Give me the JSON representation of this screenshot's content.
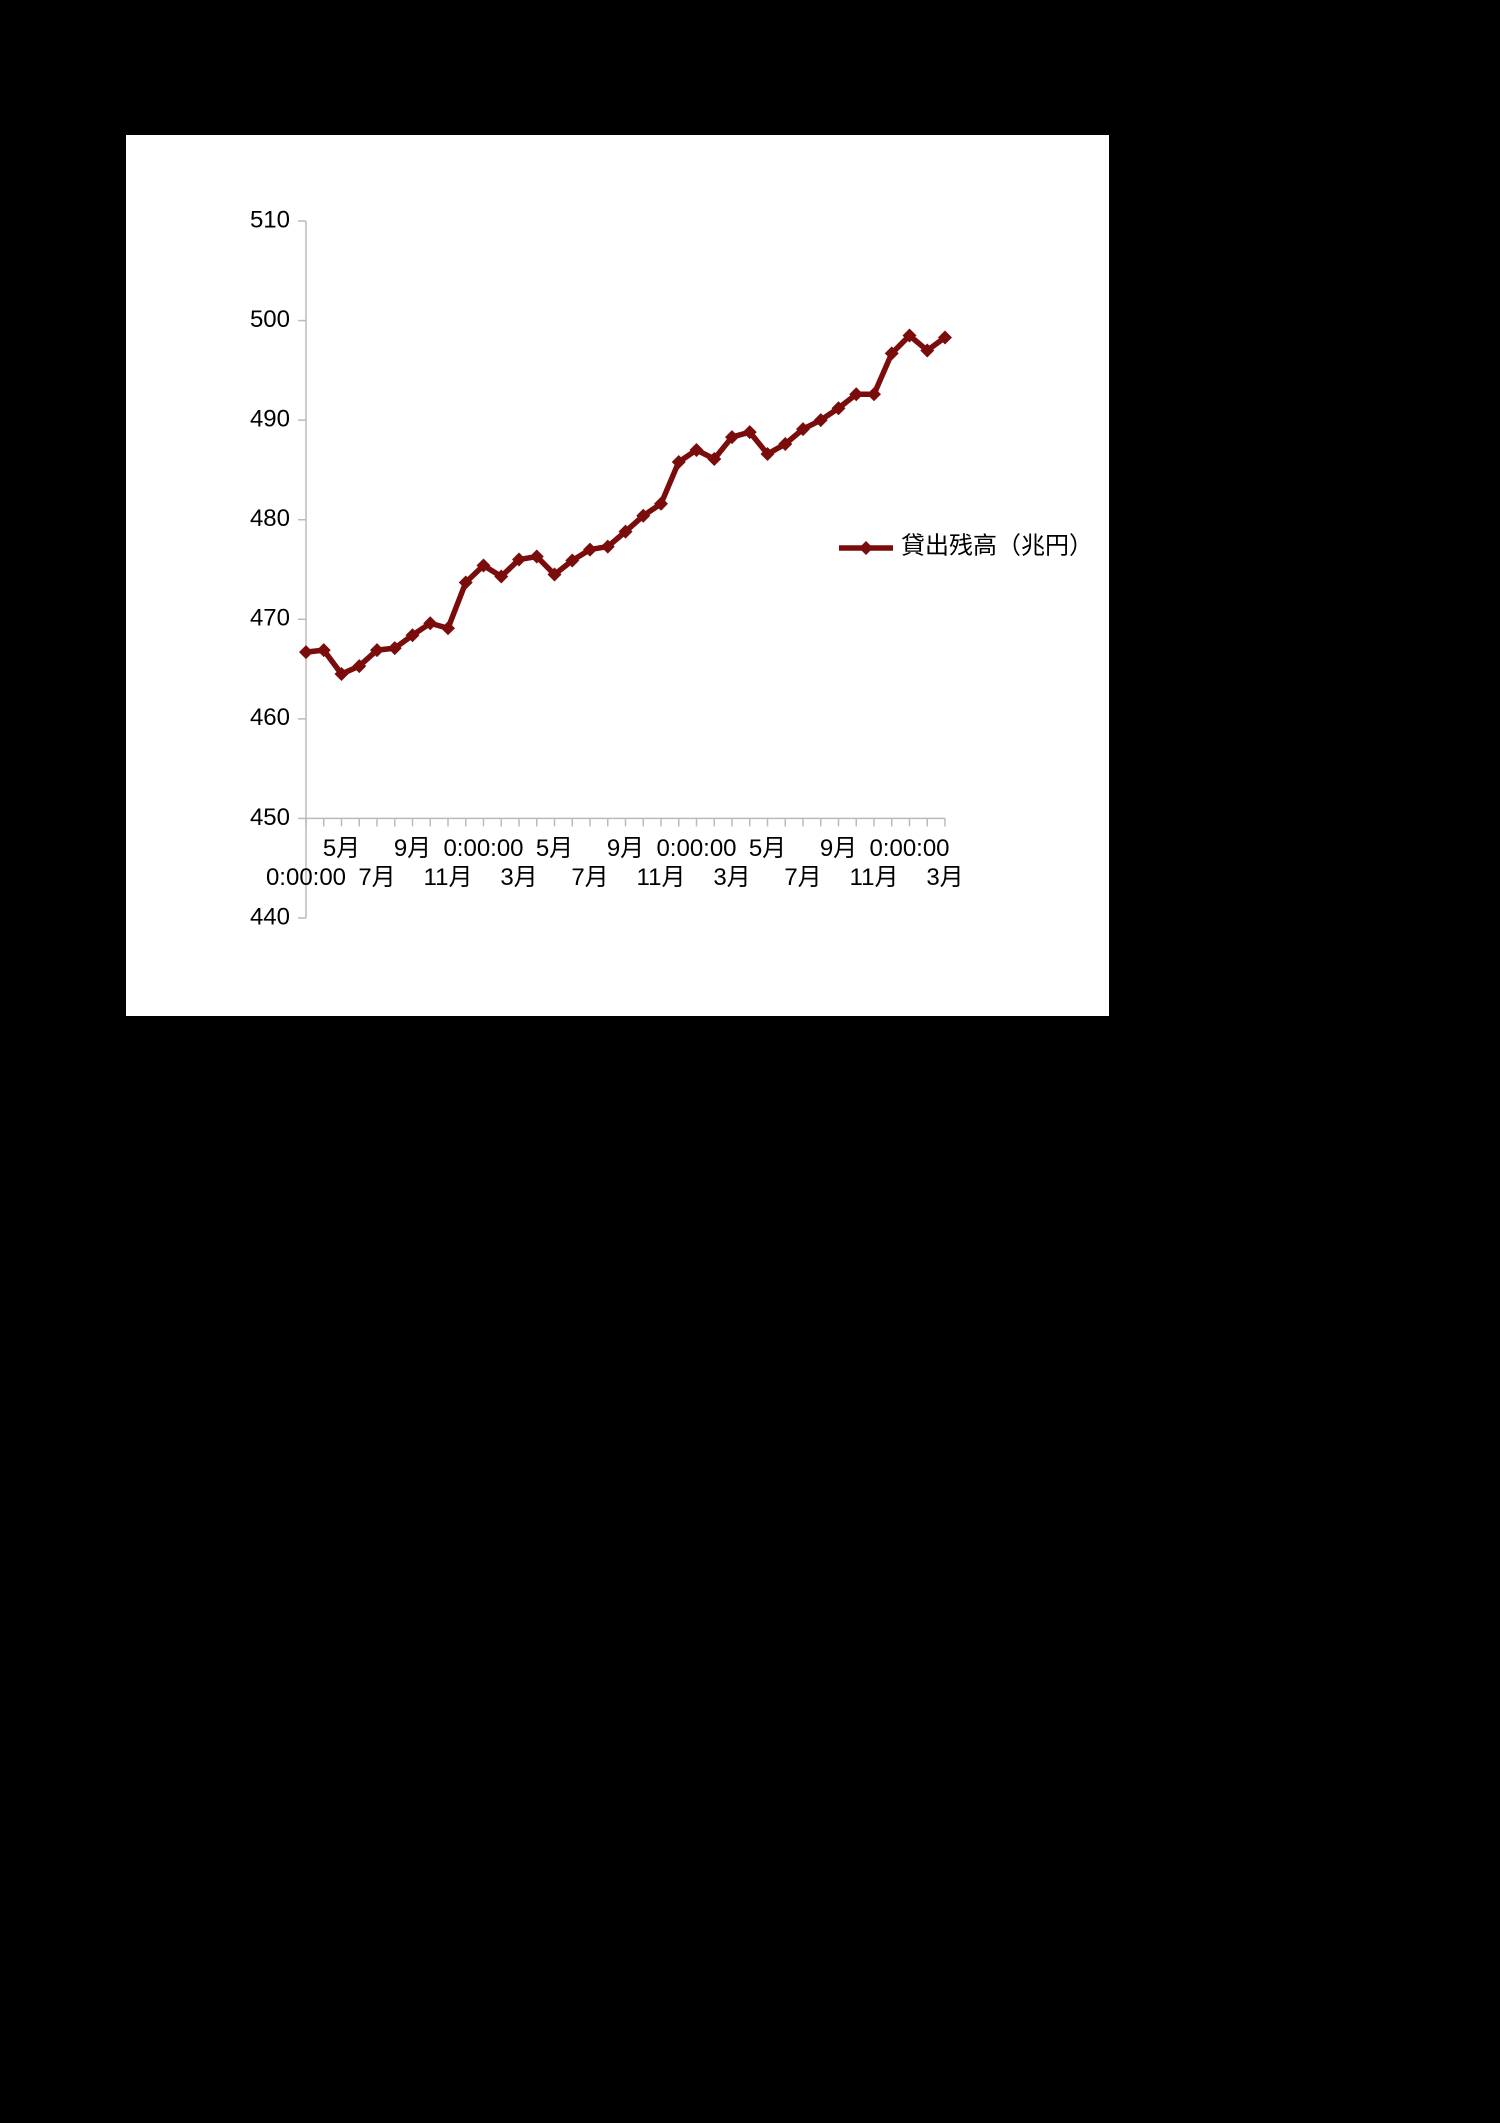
{
  "chart_data": {
    "type": "line",
    "categories": [
      "0:00:00",
      null,
      "5月",
      null,
      "7月",
      null,
      "9月",
      null,
      "11月",
      null,
      "0:00:00",
      null,
      "3月",
      null,
      "5月",
      null,
      "7月",
      null,
      "9月",
      null,
      "11月",
      null,
      "0:00:00",
      null,
      "3月",
      null,
      "5月",
      null,
      "7月",
      null,
      "9月",
      null,
      "11月",
      null,
      "0:00:00",
      null,
      "3月"
    ],
    "series": [
      {
        "name": "貸出残高（兆円）",
        "color": "#7b0c0c",
        "values": [
          466.7,
          466.9,
          464.5,
          465.3,
          466.9,
          467.1,
          468.4,
          469.6,
          469.1,
          473.7,
          475.4,
          474.3,
          476.0,
          476.3,
          474.5,
          475.9,
          477.0,
          477.3,
          478.8,
          480.4,
          481.6,
          485.8,
          487.0,
          486.1,
          488.3,
          488.8,
          486.6,
          487.6,
          489.1,
          490.0,
          491.2,
          492.6,
          492.6,
          496.7,
          498.5,
          497.0,
          498.3
        ]
      }
    ],
    "ylim": [
      440,
      510
    ],
    "yticks": [
      440,
      450,
      460,
      470,
      480,
      490,
      500,
      510
    ],
    "x_axis_crosses": 450,
    "grid": false,
    "legend": "right",
    "marker": "diamond"
  }
}
